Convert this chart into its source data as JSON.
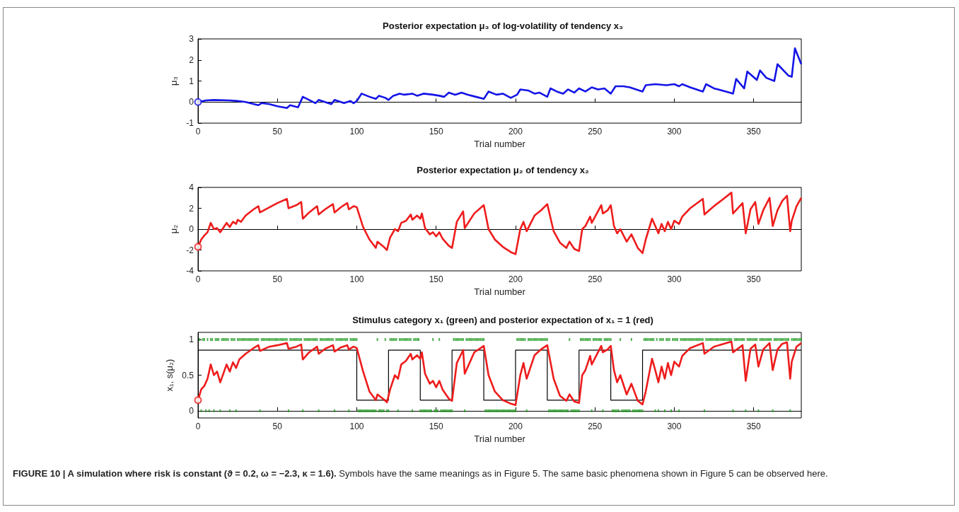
{
  "chart_data": [
    {
      "type": "line",
      "title": "Posterior expectation μ₃ of log-volatility of tendency x₃",
      "xlabel": "Trial number",
      "ylabel": "μ₃",
      "xlim": [
        0,
        380
      ],
      "xticks": [
        0,
        50,
        100,
        150,
        200,
        250,
        300,
        350
      ],
      "ylim": [
        -1,
        3
      ],
      "yticks": [
        -1,
        0,
        1,
        2,
        3
      ],
      "series": [
        {
          "color": "#1414e6",
          "x": [
            0,
            5,
            10,
            20,
            25,
            30,
            38,
            40,
            45,
            50,
            56,
            58,
            63,
            66,
            70,
            74,
            76,
            80,
            84,
            86,
            92,
            96,
            98,
            100,
            103,
            108,
            112,
            114,
            118,
            120,
            123,
            127,
            130,
            135,
            138,
            142,
            148,
            152,
            155,
            158,
            162,
            166,
            170,
            175,
            180,
            183,
            188,
            192,
            197,
            201,
            203,
            208,
            212,
            215,
            220,
            222,
            226,
            230,
            233,
            237,
            240,
            244,
            248,
            252,
            256,
            260,
            263,
            268,
            272,
            278,
            280,
            282,
            288,
            295,
            300,
            303,
            305,
            310,
            318,
            320,
            325,
            335,
            337,
            339,
            344,
            346,
            352,
            354,
            358,
            363,
            365,
            372,
            374,
            376,
            380
          ],
          "values": [
            0,
            0.08,
            0.1,
            0.08,
            0.05,
            0,
            -0.15,
            -0.05,
            -0.1,
            -0.2,
            -0.28,
            -0.15,
            -0.25,
            0.25,
            0.1,
            -0.05,
            0.1,
            0,
            -0.1,
            0.1,
            -0.05,
            0.05,
            -0.05,
            0.05,
            0.4,
            0.25,
            0.15,
            0.3,
            0.2,
            0.1,
            0.3,
            0.4,
            0.35,
            0.4,
            0.3,
            0.4,
            0.35,
            0.3,
            0.25,
            0.45,
            0.35,
            0.45,
            0.35,
            0.25,
            0.15,
            0.5,
            0.35,
            0.4,
            0.2,
            0.35,
            0.6,
            0.55,
            0.4,
            0.45,
            0.25,
            0.65,
            0.5,
            0.4,
            0.6,
            0.45,
            0.65,
            0.5,
            0.7,
            0.6,
            0.65,
            0.4,
            0.75,
            0.75,
            0.7,
            0.55,
            0.5,
            0.8,
            0.85,
            0.8,
            0.85,
            0.75,
            0.85,
            0.7,
            0.5,
            0.85,
            0.65,
            0.45,
            0.4,
            1.1,
            0.65,
            1.45,
            1.05,
            1.5,
            1.15,
            1.0,
            1.8,
            1.25,
            1.2,
            2.55,
            1.8
          ]
        },
        {
          "type": "scatter",
          "marker": "circle",
          "color": "#1414e6",
          "x": [
            0
          ],
          "values": [
            0
          ]
        }
      ]
    },
    {
      "type": "line",
      "title": "Posterior expectation μ₂ of tendency x₂",
      "xlabel": "Trial number",
      "ylabel": "μ₂",
      "xlim": [
        0,
        380
      ],
      "xticks": [
        0,
        50,
        100,
        150,
        200,
        250,
        300,
        350
      ],
      "ylim": [
        -4,
        4
      ],
      "yticks": [
        -4,
        -2,
        0,
        2,
        4
      ],
      "series": [
        {
          "color": "#ee1c1c",
          "x": [
            0,
            2,
            4,
            6,
            8,
            10,
            12,
            14,
            18,
            20,
            22,
            24,
            25,
            27,
            30,
            35,
            38,
            39,
            45,
            50,
            56,
            57,
            62,
            65,
            66,
            70,
            75,
            76,
            80,
            85,
            86,
            90,
            94,
            95,
            98,
            100,
            104,
            108,
            112,
            113,
            117,
            119,
            121,
            124,
            126,
            128,
            131,
            134,
            135,
            138,
            140,
            141,
            143,
            146,
            148,
            150,
            152,
            154,
            158,
            160,
            163,
            167,
            168,
            174,
            180,
            183,
            187,
            192,
            197,
            200,
            203,
            205,
            207,
            212,
            216,
            220,
            224,
            228,
            232,
            234,
            237,
            240,
            242,
            244,
            247,
            248,
            254,
            255,
            258,
            260,
            262,
            264,
            266,
            270,
            273,
            277,
            280,
            282,
            284,
            286,
            288,
            290,
            292,
            294,
            296,
            298,
            300,
            303,
            305,
            310,
            318,
            319,
            325,
            336,
            337,
            343,
            345,
            348,
            351,
            353,
            356,
            360,
            362,
            365,
            368,
            371,
            373,
            374,
            377,
            380
          ],
          "values": [
            -1.7,
            -1,
            -0.6,
            -0.3,
            0.6,
            0,
            0.1,
            -0.3,
            0.6,
            0.2,
            0.7,
            0.5,
            0.9,
            0.7,
            1.3,
            1.9,
            2.2,
            1.6,
            2.1,
            2.5,
            2.9,
            2.0,
            2.3,
            2.6,
            1.0,
            1.6,
            2.2,
            1.4,
            1.9,
            2.4,
            1.6,
            2.1,
            2.5,
            1.9,
            2.2,
            2.1,
            0.2,
            -1.0,
            -1.8,
            -1.2,
            -1.7,
            -2.0,
            -0.8,
            0,
            -0.2,
            0.6,
            0.8,
            1.4,
            0.9,
            1.3,
            1.0,
            1.5,
            0.1,
            -0.5,
            -0.3,
            -0.7,
            -0.3,
            -0.9,
            -1.6,
            -1.8,
            0.7,
            1.7,
            0.1,
            1.5,
            2.3,
            0,
            -1.0,
            -1.7,
            -2.2,
            -2.4,
            0,
            0.7,
            -0.2,
            1.3,
            1.8,
            2.4,
            -0.2,
            -1.3,
            -1.8,
            -1.2,
            -1.9,
            -2.1,
            0,
            0.3,
            1.2,
            0.6,
            2.3,
            1.5,
            1.8,
            2.3,
            0.3,
            -0.4,
            0,
            -1.2,
            -0.5,
            -1.8,
            -2.3,
            -1.0,
            0,
            1.0,
            0.3,
            -0.4,
            0.5,
            -0.2,
            0.7,
            0,
            0.8,
            0.5,
            1.2,
            2.0,
            2.9,
            1.4,
            2.2,
            3.5,
            1.5,
            2.5,
            -0.4,
            1.9,
            2.6,
            0.5,
            1.8,
            3.0,
            0.3,
            1.8,
            2.7,
            3.2,
            -0.2,
            0.8,
            2.2,
            3.0
          ]
        },
        {
          "type": "scatter",
          "marker": "circle",
          "color": "#ee1c1c",
          "x": [
            0
          ],
          "values": [
            -1.7
          ]
        }
      ]
    },
    {
      "type": "line",
      "title": "Stimulus category x₁ (green) and posterior expectation of x₁ = 1 (red)",
      "xlabel": "Trial number",
      "ylabel": "x₁, s(μ₂)",
      "xlim": [
        0,
        380
      ],
      "xticks": [
        0,
        50,
        100,
        150,
        200,
        250,
        300,
        350
      ],
      "ylim": [
        -0.1,
        1.1
      ],
      "yticks": [
        0,
        0.5,
        1
      ],
      "series": [
        {
          "type": "scatter",
          "marker": "square",
          "color": "#1f9a1f",
          "x": [
            1,
            3,
            4,
            6,
            8,
            9,
            11,
            12,
            13,
            15,
            16,
            17,
            18,
            19,
            21,
            22,
            23,
            25,
            26,
            27,
            28,
            29,
            30,
            31,
            32,
            33,
            34,
            35,
            36,
            37,
            38,
            40,
            41,
            42,
            43,
            44,
            45,
            46,
            47,
            48,
            49,
            50,
            51,
            52,
            53,
            54,
            55,
            56,
            58,
            59,
            60,
            61,
            62,
            63,
            64,
            65,
            67,
            68,
            69,
            70,
            71,
            72,
            73,
            74,
            75,
            77,
            78,
            79,
            80,
            81,
            82,
            83,
            84,
            85,
            87,
            88,
            89,
            90,
            91,
            92,
            93,
            94,
            96,
            97,
            98,
            99,
            100,
            113,
            118,
            121,
            122,
            123,
            124,
            125,
            127,
            128,
            129,
            130,
            131,
            132,
            133,
            134,
            136,
            137,
            138,
            139,
            148,
            152,
            161,
            162,
            163,
            164,
            165,
            166,
            167,
            169,
            170,
            171,
            172,
            173,
            174,
            175,
            176,
            177,
            178,
            179,
            180,
            201,
            202,
            203,
            204,
            205,
            206,
            208,
            209,
            210,
            211,
            212,
            213,
            214,
            215,
            216,
            217,
            218,
            219,
            220,
            234,
            241,
            242,
            243,
            244,
            245,
            246,
            247,
            249,
            250,
            251,
            252,
            253,
            254,
            256,
            257,
            258,
            259,
            260,
            266,
            273,
            281,
            282,
            283,
            284,
            285,
            286,
            287,
            289,
            291,
            292,
            293,
            295,
            296,
            297,
            299,
            300,
            301,
            302,
            304,
            305,
            306,
            307,
            308,
            309,
            310,
            311,
            312,
            313,
            314,
            315,
            316,
            317,
            318,
            320,
            321,
            322,
            323,
            324,
            325,
            326,
            327,
            328,
            329,
            330,
            331,
            332,
            333,
            334,
            335,
            336,
            338,
            339,
            340,
            341,
            342,
            343,
            344,
            346,
            347,
            348,
            349,
            350,
            351,
            352,
            354,
            355,
            356,
            357,
            358,
            359,
            360,
            361,
            363,
            364,
            365,
            366,
            367,
            368,
            369,
            370,
            371,
            372,
            374,
            375,
            376,
            377,
            378,
            379,
            380
          ],
          "values": [
            1,
            1,
            1,
            1,
            1,
            1,
            1,
            1,
            1,
            1,
            1,
            1,
            1,
            1,
            1,
            1,
            1,
            1,
            1,
            1,
            1,
            1,
            1,
            1,
            1,
            1,
            1,
            1,
            1,
            1,
            1,
            1,
            1,
            1,
            1,
            1,
            1,
            1,
            1,
            1,
            1,
            1,
            1,
            1,
            1,
            1,
            1,
            1,
            1,
            1,
            1,
            1,
            1,
            1,
            1,
            1,
            1,
            1,
            1,
            1,
            1,
            1,
            1,
            1,
            1,
            1,
            1,
            1,
            1,
            1,
            1,
            1,
            1,
            1,
            1,
            1,
            1,
            1,
            1,
            1,
            1,
            1,
            1,
            1,
            1,
            1,
            1,
            1,
            1,
            1,
            1,
            1,
            1,
            1,
            1,
            1,
            1,
            1,
            1,
            1,
            1,
            1,
            1,
            1,
            1,
            1,
            1,
            1,
            1,
            1,
            1,
            1,
            1,
            1,
            1,
            1,
            1,
            1,
            1,
            1,
            1,
            1,
            1,
            1,
            1,
            1,
            1,
            1,
            1,
            1,
            1,
            1,
            1,
            1,
            1,
            1,
            1,
            1,
            1,
            1,
            1,
            1,
            1,
            1,
            1,
            1,
            1,
            1,
            1,
            1,
            1,
            1,
            1,
            1,
            1,
            1,
            1,
            1,
            1,
            1,
            1,
            1,
            1,
            1,
            1,
            1,
            1,
            1,
            1,
            1,
            1,
            1,
            1,
            1,
            1,
            1,
            1,
            1,
            1,
            1,
            1,
            1,
            1,
            1,
            1,
            1,
            1,
            1,
            1,
            1,
            1,
            1,
            1,
            1,
            1,
            1,
            1,
            1,
            1,
            1,
            1,
            1,
            1,
            1,
            1,
            1,
            1,
            1,
            1,
            1,
            1,
            1,
            1,
            1,
            1,
            1,
            1,
            1,
            1,
            1,
            1,
            1,
            1,
            1,
            1,
            1,
            1,
            1,
            1,
            1,
            1,
            1,
            1,
            1,
            1,
            1,
            1,
            1,
            1,
            1,
            1,
            1,
            1,
            1,
            1,
            1,
            1,
            1,
            1,
            1,
            1,
            1,
            1,
            1,
            1,
            1
          ]
        },
        {
          "type": "scatter",
          "marker": "square",
          "color": "#1f9a1f",
          "x": [
            2,
            5,
            7,
            10,
            14,
            20,
            24,
            39,
            57,
            66,
            76,
            86,
            95,
            101,
            102,
            103,
            104,
            105,
            106,
            107,
            108,
            109,
            110,
            111,
            112,
            114,
            115,
            116,
            117,
            119,
            120,
            126,
            135,
            140,
            141,
            142,
            143,
            144,
            145,
            146,
            147,
            149,
            150,
            151,
            153,
            154,
            155,
            156,
            157,
            158,
            159,
            160,
            168,
            181,
            182,
            183,
            184,
            185,
            186,
            187,
            188,
            189,
            190,
            191,
            192,
            193,
            194,
            195,
            196,
            197,
            198,
            199,
            200,
            207,
            221,
            222,
            223,
            224,
            225,
            226,
            227,
            228,
            229,
            230,
            231,
            232,
            233,
            235,
            236,
            237,
            238,
            239,
            240,
            248,
            255,
            261,
            262,
            263,
            264,
            265,
            267,
            268,
            269,
            270,
            271,
            272,
            274,
            275,
            276,
            277,
            278,
            279,
            280,
            288,
            290,
            294,
            298,
            303,
            319,
            337,
            345,
            353,
            362,
            373
          ],
          "values": [
            0,
            0,
            0,
            0,
            0,
            0,
            0,
            0,
            0,
            0,
            0,
            0,
            0,
            0,
            0,
            0,
            0,
            0,
            0,
            0,
            0,
            0,
            0,
            0,
            0,
            0,
            0,
            0,
            0,
            0,
            0,
            0,
            0,
            0,
            0,
            0,
            0,
            0,
            0,
            0,
            0,
            0,
            0,
            0,
            0,
            0,
            0,
            0,
            0,
            0,
            0,
            0,
            0,
            0,
            0,
            0,
            0,
            0,
            0,
            0,
            0,
            0,
            0,
            0,
            0,
            0,
            0,
            0,
            0,
            0,
            0,
            0,
            0,
            0,
            0,
            0,
            0,
            0,
            0,
            0,
            0,
            0,
            0,
            0,
            0,
            0,
            0,
            0,
            0,
            0,
            0,
            0,
            0,
            0,
            0,
            0,
            0,
            0,
            0,
            0,
            0,
            0,
            0,
            0,
            0,
            0,
            0,
            0,
            0,
            0,
            0,
            0,
            0,
            0,
            0,
            0,
            0,
            0,
            0,
            0,
            0,
            0,
            0,
            0
          ]
        },
        {
          "type": "step",
          "color": "#000000",
          "x": [
            0,
            100,
            120,
            140,
            160,
            180,
            200,
            220,
            240,
            260,
            280,
            380
          ],
          "values": [
            0.85,
            0.15,
            0.85,
            0.15,
            0.85,
            0.15,
            0.85,
            0.15,
            0.85,
            0.15,
            0.85,
            0.85
          ]
        },
        {
          "color": "#ee1c1c",
          "x": [
            0,
            2,
            4,
            6,
            8,
            10,
            12,
            14,
            18,
            20,
            22,
            24,
            26,
            30,
            35,
            38,
            39,
            45,
            50,
            56,
            57,
            62,
            65,
            66,
            70,
            75,
            76,
            80,
            85,
            86,
            90,
            94,
            95,
            98,
            100,
            104,
            108,
            112,
            113,
            117,
            119,
            121,
            124,
            126,
            128,
            131,
            134,
            135,
            138,
            140,
            141,
            143,
            146,
            148,
            150,
            152,
            154,
            158,
            160,
            163,
            167,
            168,
            174,
            180,
            183,
            187,
            192,
            197,
            200,
            203,
            205,
            207,
            212,
            216,
            220,
            224,
            228,
            232,
            234,
            237,
            240,
            242,
            244,
            247,
            248,
            254,
            255,
            258,
            260,
            262,
            264,
            266,
            270,
            273,
            277,
            280,
            282,
            284,
            286,
            288,
            290,
            292,
            294,
            296,
            298,
            300,
            303,
            305,
            310,
            318,
            319,
            325,
            336,
            337,
            343,
            345,
            348,
            351,
            353,
            356,
            360,
            362,
            365,
            368,
            371,
            373,
            374,
            377,
            380
          ],
          "values": [
            0.15,
            0.3,
            0.35,
            0.45,
            0.65,
            0.5,
            0.55,
            0.4,
            0.65,
            0.55,
            0.68,
            0.6,
            0.72,
            0.8,
            0.88,
            0.92,
            0.84,
            0.9,
            0.92,
            0.95,
            0.87,
            0.9,
            0.93,
            0.72,
            0.82,
            0.9,
            0.8,
            0.87,
            0.92,
            0.83,
            0.89,
            0.92,
            0.86,
            0.9,
            0.88,
            0.55,
            0.27,
            0.15,
            0.23,
            0.16,
            0.12,
            0.3,
            0.5,
            0.45,
            0.65,
            0.7,
            0.8,
            0.72,
            0.78,
            0.73,
            0.82,
            0.52,
            0.38,
            0.42,
            0.33,
            0.42,
            0.3,
            0.17,
            0.14,
            0.67,
            0.85,
            0.52,
            0.82,
            0.91,
            0.5,
            0.27,
            0.15,
            0.1,
            0.08,
            0.5,
            0.67,
            0.45,
            0.78,
            0.86,
            0.92,
            0.45,
            0.21,
            0.14,
            0.23,
            0.13,
            0.11,
            0.5,
            0.57,
            0.77,
            0.65,
            0.91,
            0.82,
            0.86,
            0.91,
            0.57,
            0.4,
            0.5,
            0.23,
            0.38,
            0.14,
            0.09,
            0.27,
            0.5,
            0.73,
            0.57,
            0.4,
            0.62,
            0.45,
            0.67,
            0.5,
            0.69,
            0.62,
            0.77,
            0.88,
            0.95,
            0.8,
            0.9,
            0.97,
            0.82,
            0.92,
            0.42,
            0.87,
            0.93,
            0.62,
            0.86,
            0.95,
            0.57,
            0.86,
            0.94,
            0.96,
            0.45,
            0.69,
            0.9,
            0.95
          ]
        },
        {
          "type": "scatter",
          "marker": "circle",
          "color": "#ee1c1c",
          "x": [
            0
          ],
          "values": [
            0.15
          ]
        }
      ],
      "annotations": [
        "FIGURE 10 | A simulation where risk is constant (ϑ = 0.2, ω = −2.3, κ = 1.6).",
        "Symbols have the same meanings as in Figure 5. The same basic phenomena shown in Figure 5 can be observed here."
      ]
    }
  ]
}
